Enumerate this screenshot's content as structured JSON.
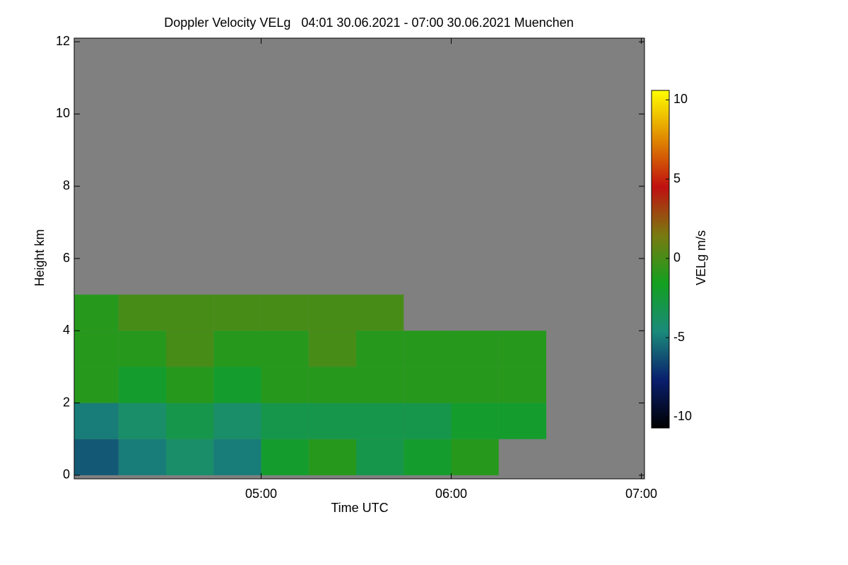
{
  "chart_data": {
    "type": "heatmap",
    "title": "Doppler Velocity VELg   04:01 30.06.2021 - 07:00 30.06.2021 Muenchen",
    "xlabel": "Time UTC",
    "ylabel": "Height km",
    "colorbar_label": "VELg m/s",
    "xlim": [
      241,
      421
    ],
    "xticks": [
      {
        "value": 300,
        "label": "05:00"
      },
      {
        "value": 360,
        "label": "06:00"
      },
      {
        "value": 420,
        "label": "07:00"
      }
    ],
    "ylim": [
      -0.1,
      12.1
    ],
    "yticks": [
      0,
      2,
      4,
      6,
      8,
      10,
      12
    ],
    "clim": [
      -10.7,
      10.6
    ],
    "cticks": [
      -10,
      -5,
      0,
      5,
      10
    ],
    "colormap": [
      "#000000",
      "#0a1f6e",
      "#1a8a7a",
      "#13a020",
      "#7a7a10",
      "#c01010",
      "#e08a00",
      "#ffff00"
    ],
    "background": "#808080",
    "x_edges": [
      241,
      255,
      270,
      285,
      300,
      315,
      330,
      345,
      360,
      375,
      390,
      405,
      420
    ],
    "y_edges": [
      0,
      1,
      2,
      3,
      4,
      5,
      6,
      7,
      8,
      9,
      10,
      11,
      12
    ],
    "values": [
      [
        -6,
        -5,
        -4,
        -5,
        -2,
        -1,
        -3,
        -2,
        -1,
        null,
        null,
        null
      ],
      [
        -5,
        -4,
        -3,
        -4,
        -3,
        -3,
        -3,
        -3,
        -2,
        -2,
        null,
        null
      ],
      [
        -1,
        -2,
        -1,
        -2,
        -1,
        -1,
        -1,
        -1,
        -1,
        -1,
        null,
        null
      ],
      [
        -1,
        -1,
        0,
        -1,
        -1,
        0,
        -1,
        -1,
        -1,
        -1,
        null,
        null
      ],
      [
        -1,
        0,
        0,
        0,
        0,
        0,
        0,
        null,
        null,
        null,
        null,
        null
      ],
      [
        null,
        null,
        null,
        null,
        null,
        null,
        null,
        null,
        null,
        null,
        null,
        null
      ],
      [
        null,
        null,
        null,
        null,
        null,
        null,
        null,
        null,
        null,
        null,
        null,
        null
      ],
      [
        null,
        null,
        null,
        null,
        null,
        null,
        null,
        null,
        null,
        null,
        null,
        null
      ],
      [
        null,
        null,
        null,
        null,
        null,
        null,
        null,
        null,
        null,
        null,
        null,
        null
      ],
      [
        null,
        null,
        null,
        null,
        null,
        null,
        null,
        null,
        null,
        null,
        null,
        null
      ],
      [
        null,
        null,
        null,
        null,
        null,
        null,
        null,
        null,
        null,
        null,
        null,
        null
      ],
      [
        null,
        null,
        null,
        null,
        null,
        null,
        null,
        null,
        null,
        null,
        null,
        null
      ]
    ]
  }
}
